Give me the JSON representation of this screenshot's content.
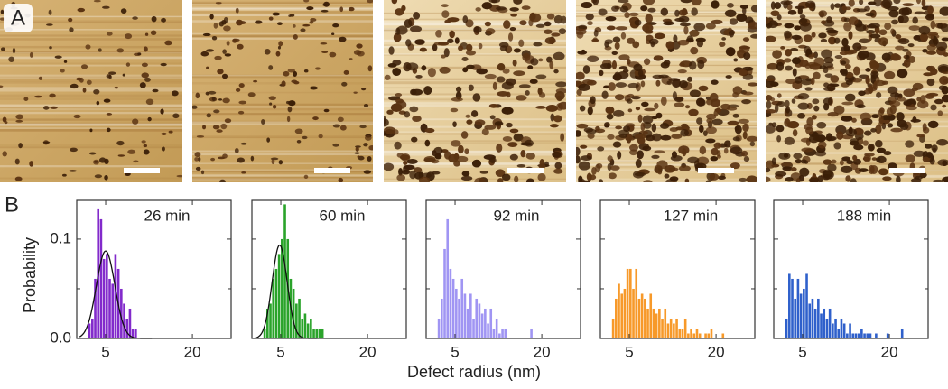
{
  "panel_labels": [
    "A",
    "B"
  ],
  "x_label": "Defect radius (nm)",
  "y_label": "Probability",
  "chart_data": [
    {
      "type": "histogram",
      "title": "26 min",
      "color": "#7b1fc8",
      "bins": [
        2.0,
        2.5,
        3.0,
        3.5,
        4.0,
        4.5,
        5.0,
        5.5,
        6.0,
        6.5,
        7.0,
        7.5,
        8.0,
        8.5,
        9.0,
        9.5,
        10.0,
        10.5
      ],
      "values": [
        0.015,
        0.02,
        0.06,
        0.13,
        0.12,
        0.08,
        0.085,
        0.06,
        0.055,
        0.085,
        0.07,
        0.05,
        0.035,
        0.02,
        0.03,
        0.01,
        0.01
      ],
      "fit": {
        "mean": 5.0,
        "sd": 1.6,
        "peak": 0.088
      },
      "xlim": [
        0,
        26.7
      ],
      "xticks": [
        5,
        20
      ],
      "ylim": [
        0,
        0.139
      ],
      "yticks": [
        {
          "value": 0,
          "label": "0.0"
        },
        0.1
      ],
      "yminor": [
        0.05
      ],
      "show_ytick_labels": true
    },
    {
      "type": "histogram",
      "title": "60 min",
      "color": "#1f9e1f",
      "bins": [
        2.0,
        2.5,
        3.0,
        3.5,
        4.0,
        4.5,
        5.0,
        5.5,
        6.0,
        6.5,
        7.0,
        7.5,
        8.0,
        8.5,
        9.0,
        9.5,
        10.0,
        10.5,
        11.0,
        11.5,
        12.0,
        12.5
      ],
      "values": [
        0.01,
        0.03,
        0.035,
        0.06,
        0.07,
        0.085,
        0.1,
        0.135,
        0.1,
        0.06,
        0.05,
        0.035,
        0.04,
        0.02,
        0.025,
        0.015,
        0.02,
        0.01,
        0.01,
        0.01,
        0.01
      ],
      "fit": {
        "mean": 4.8,
        "sd": 1.3,
        "peak": 0.094
      },
      "xlim": [
        0,
        26.7
      ],
      "xticks": [
        5,
        20
      ],
      "ylim": [
        0,
        0.139
      ],
      "yticks": [
        0,
        0.1
      ],
      "yminor": [
        0.05
      ],
      "show_ytick_labels": false
    },
    {
      "type": "histogram",
      "title": "92 min",
      "color": "#9b8ff2",
      "bins": [
        2.0,
        2.5,
        3.0,
        3.5,
        4.0,
        4.5,
        5.0,
        5.5,
        6.0,
        6.5,
        7.0,
        7.5,
        8.0,
        8.5,
        9.0,
        9.5,
        10.0,
        10.5,
        11.0,
        11.5,
        12.0,
        12.5,
        13.0,
        13.5,
        14.0,
        14.5,
        15.0,
        15.5,
        16.0,
        16.5,
        17.0,
        17.5,
        18.0,
        18.5,
        19.0
      ],
      "values": [
        0.02,
        0.04,
        0.09,
        0.12,
        0.07,
        0.06,
        0.05,
        0.04,
        0.06,
        0.045,
        0.03,
        0.045,
        0.02,
        0.04,
        0.035,
        0.025,
        0.03,
        0.015,
        0.03,
        0.01,
        0.02,
        0.005,
        0.01,
        0.01,
        0,
        0,
        0,
        0,
        0,
        0,
        0,
        0,
        0.01,
        0
      ],
      "xlim": [
        0,
        26.7
      ],
      "xticks": [
        5,
        20
      ],
      "ylim": [
        0,
        0.139
      ],
      "yticks": [
        0,
        0.1
      ],
      "yminor": [
        0.05
      ],
      "show_ytick_labels": false
    },
    {
      "type": "histogram",
      "title": "127 min",
      "color": "#f7941d",
      "bins": [
        2.0,
        2.5,
        3.0,
        3.5,
        4.0,
        4.5,
        5.0,
        5.5,
        6.0,
        6.5,
        7.0,
        7.5,
        8.0,
        8.5,
        9.0,
        9.5,
        10.0,
        10.5,
        11.0,
        11.5,
        12.0,
        12.5,
        13.0,
        13.5,
        14.0,
        14.5,
        15.0,
        15.5,
        16.0,
        16.5,
        17.0,
        17.5,
        18.0,
        18.5,
        19.0,
        19.5,
        20.0,
        20.5,
        21.0,
        21.5,
        22.0
      ],
      "values": [
        0.02,
        0.04,
        0.055,
        0.045,
        0.05,
        0.07,
        0.07,
        0.05,
        0.07,
        0.04,
        0.045,
        0.04,
        0.03,
        0.045,
        0.03,
        0.025,
        0.03,
        0.02,
        0.03,
        0.015,
        0.02,
        0.015,
        0.02,
        0.01,
        0.01,
        0.02,
        0.005,
        0.01,
        0.005,
        0.01,
        0.005,
        0,
        0.005,
        0.005,
        0.01,
        0,
        0,
        0,
        0.005,
        0
      ],
      "xlim": [
        0,
        26.7
      ],
      "xticks": [
        5,
        20
      ],
      "ylim": [
        0,
        0.139
      ],
      "yticks": [
        0,
        0.1
      ],
      "yminor": [
        0.05
      ],
      "show_ytick_labels": false
    },
    {
      "type": "histogram",
      "title": "188 min",
      "color": "#2457c8",
      "bins": [
        2.0,
        2.5,
        3.0,
        3.5,
        4.0,
        4.5,
        5.0,
        5.5,
        6.0,
        6.5,
        7.0,
        7.5,
        8.0,
        8.5,
        9.0,
        9.5,
        10.0,
        10.5,
        11.0,
        11.5,
        12.0,
        12.5,
        13.0,
        13.5,
        14.0,
        14.5,
        15.0,
        15.5,
        16.0,
        16.5,
        17.0,
        17.5,
        18.0,
        18.5,
        19.0,
        19.5,
        20.0,
        20.5,
        21.0,
        21.5,
        22.0,
        22.5,
        23.0
      ],
      "values": [
        0.02,
        0.065,
        0.06,
        0.04,
        0.06,
        0.045,
        0.05,
        0.065,
        0.035,
        0.04,
        0.03,
        0.04,
        0.025,
        0.03,
        0.02,
        0.03,
        0.015,
        0.02,
        0.01,
        0.02,
        0.015,
        0.005,
        0.015,
        0.005,
        0.005,
        0.005,
        0.01,
        0.005,
        0.005,
        0.005,
        0,
        0.005,
        0,
        0,
        0,
        0.005,
        0,
        0,
        0,
        0,
        0.01,
        0
      ],
      "xlim": [
        0,
        26.7
      ],
      "xticks": [
        5,
        20
      ],
      "ylim": [
        0,
        0.139
      ],
      "yticks": [
        0,
        0.1
      ],
      "yminor": [
        0.05
      ],
      "show_ytick_labels": false
    }
  ]
}
